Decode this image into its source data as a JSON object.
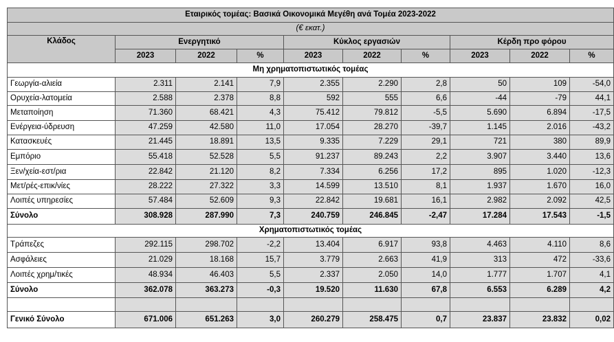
{
  "title": "Εταιρικός τομέας: Βασικά Οικονομικά Μεγέθη ανά Τομέα 2023-2022",
  "subtitle": "(€ εκατ.)",
  "header": {
    "sector": "Κλάδος",
    "groups": [
      "Ενεργητικό",
      "Κύκλος εργασιών",
      "Κέρδη προ φόρου"
    ],
    "y2023": "2023",
    "y2022": "2022",
    "pct": "%"
  },
  "sections": [
    {
      "title": "Μη χρηματοπιστωτικός τομέας",
      "rows": [
        {
          "label": "Γεωργία-αλιεία",
          "v": [
            "2.311",
            "2.141",
            "7,9",
            "2.355",
            "2.290",
            "2,8",
            "50",
            "109",
            "-54,0"
          ]
        },
        {
          "label": "Ορυχεία-λατομεία",
          "v": [
            "2.588",
            "2.378",
            "8,8",
            "592",
            "555",
            "6,6",
            "-44",
            "-79",
            "44,1"
          ]
        },
        {
          "label": "Μεταποίηση",
          "v": [
            "71.360",
            "68.421",
            "4,3",
            "75.412",
            "79.812",
            "-5,5",
            "5.690",
            "6.894",
            "-17,5"
          ]
        },
        {
          "label": "Ενέργεια-ύδρευση",
          "v": [
            "47.259",
            "42.580",
            "11,0",
            "17.054",
            "28.270",
            "-39,7",
            "1.145",
            "2.016",
            "-43,2"
          ]
        },
        {
          "label": "Κατασκευές",
          "v": [
            "21.445",
            "18.891",
            "13,5",
            "9.335",
            "7.229",
            "29,1",
            "721",
            "380",
            "89,9"
          ]
        },
        {
          "label": "Εμπόριο",
          "v": [
            "55.418",
            "52.528",
            "5,5",
            "91.237",
            "89.243",
            "2,2",
            "3.907",
            "3.440",
            "13,6"
          ]
        },
        {
          "label": "Ξεν/χεία-εστ/ρια",
          "v": [
            "22.842",
            "21.120",
            "8,2",
            "7.334",
            "6.256",
            "17,2",
            "895",
            "1.020",
            "-12,3"
          ]
        },
        {
          "label": "Μετ/ρές-επικ/νίες",
          "v": [
            "28.222",
            "27.322",
            "3,3",
            "14.599",
            "13.510",
            "8,1",
            "1.937",
            "1.670",
            "16,0"
          ]
        },
        {
          "label": "Λοιπές υπηρεσίες",
          "v": [
            "57.484",
            "52.609",
            "9,3",
            "22.842",
            "19.681",
            "16,1",
            "2.982",
            "2.092",
            "42,5"
          ]
        }
      ],
      "total": {
        "label": "Σύνολο",
        "v": [
          "308.928",
          "287.990",
          "7,3",
          "240.759",
          "246.845",
          "-2,47",
          "17.284",
          "17.543",
          "-1,5"
        ]
      }
    },
    {
      "title": "Χρηματοπιστωτικός τομέας",
      "rows": [
        {
          "label": "Τράπεζες",
          "v": [
            "292.115",
            "298.702",
            "-2,2",
            "13.404",
            "6.917",
            "93,8",
            "4.463",
            "4.110",
            "8,6"
          ]
        },
        {
          "label": "Ασφάλειες",
          "v": [
            "21.029",
            "18.168",
            "15,7",
            "3.779",
            "2.663",
            "41,9",
            "313",
            "472",
            "-33,6"
          ]
        },
        {
          "label": "Λοιπές χρημ/τικές",
          "v": [
            "48.934",
            "46.403",
            "5,5",
            "2.337",
            "2.050",
            "14,0",
            "1.777",
            "1.707",
            "4,1"
          ]
        }
      ],
      "total": {
        "label": "Σύνολο",
        "v": [
          "362.078",
          "363.273",
          "-0,3",
          "19.520",
          "11.630",
          "67,8",
          "6.553",
          "6.289",
          "4,2"
        ]
      }
    }
  ],
  "grand_total": {
    "label": "Γενικό Σύνολο",
    "v": [
      "671.006",
      "651.263",
      "3,0",
      "260.279",
      "258.475",
      "0,7",
      "23.837",
      "23.832",
      "0,02"
    ]
  }
}
